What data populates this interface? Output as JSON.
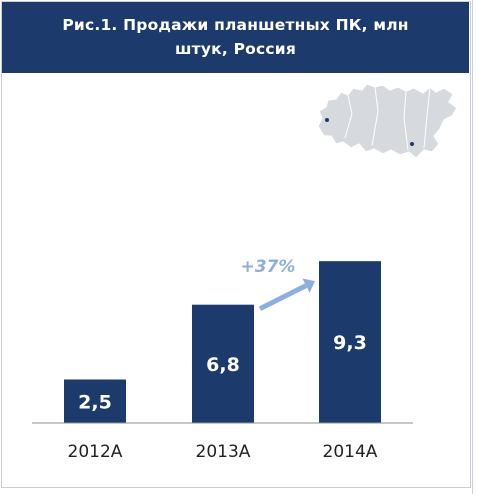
{
  "header": {
    "title_line1": "Рис.1. Продажи планшетных ПК, млн",
    "title_line2": "штук, Россия"
  },
  "colors": {
    "header_bg": "#1d3a6c",
    "bar": "#1d3a6c",
    "growth_arrow": "#8eaee0",
    "map_fill": "#d6d9de"
  },
  "map": {
    "icon": "russia-map-icon"
  },
  "chart_data": {
    "type": "bar",
    "title": "Рис.1. Продажи планшетных ПК, млн штук, Россия",
    "categories": [
      "2012A",
      "2013A",
      "2014A"
    ],
    "values": [
      2.5,
      6.8,
      9.3
    ],
    "value_labels": [
      "2,5",
      "6,8",
      "9,3"
    ],
    "ylim": [
      0,
      10
    ],
    "grid": false,
    "annotations": [
      {
        "text": "+37%",
        "from": "2013A",
        "to": "2014A",
        "kind": "arrow"
      }
    ]
  }
}
